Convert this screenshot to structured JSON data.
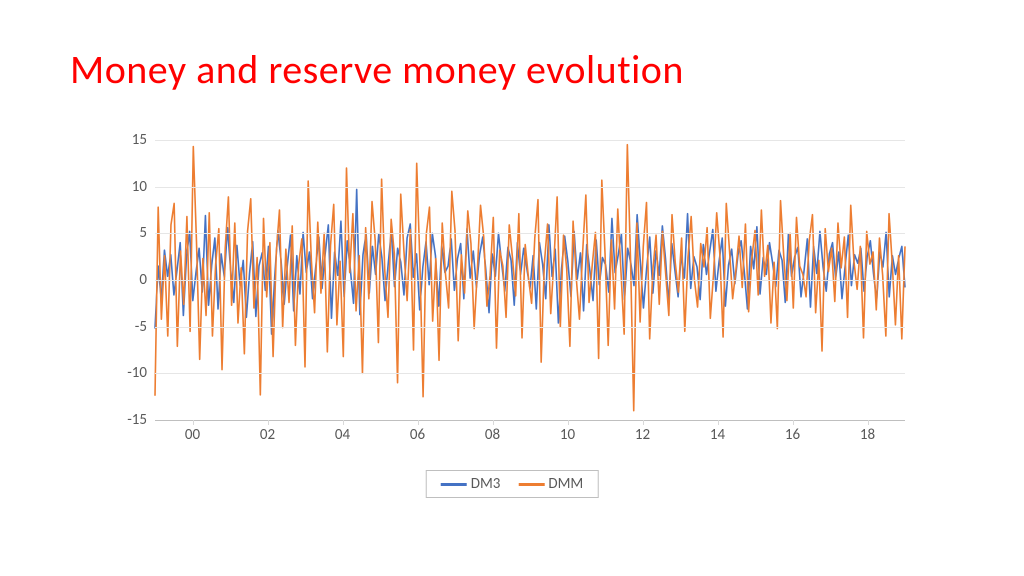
{
  "title": {
    "text": "Money and reserve money evolution",
    "color": "#ff0000",
    "fontsize": 40
  },
  "chart": {
    "type": "line",
    "background_color": "#ffffff",
    "grid_color": "#e6e6e6",
    "axis_color": "#bfbfbf",
    "tick_label_color": "#595959",
    "tick_fontsize": 15,
    "ylim": [
      -15,
      15
    ],
    "yticks": [
      -15,
      -10,
      -5,
      0,
      5,
      10,
      15
    ],
    "xlim": [
      0,
      240
    ],
    "xticks": [
      {
        "pos": 12,
        "label": "00"
      },
      {
        "pos": 36,
        "label": "02"
      },
      {
        "pos": 60,
        "label": "04"
      },
      {
        "pos": 84,
        "label": "06"
      },
      {
        "pos": 108,
        "label": "08"
      },
      {
        "pos": 132,
        "label": "10"
      },
      {
        "pos": 156,
        "label": "12"
      },
      {
        "pos": 180,
        "label": "14"
      },
      {
        "pos": 204,
        "label": "16"
      },
      {
        "pos": 228,
        "label": "18"
      }
    ],
    "line_width": 1.6,
    "series": [
      {
        "name": "DM3",
        "color": "#4472c4",
        "values": [
          -5.2,
          1.5,
          -2.1,
          3.2,
          0.4,
          2.7,
          -1.6,
          1.1,
          4.0,
          -3.8,
          2.5,
          5.2,
          -2.2,
          0.8,
          3.4,
          -1.3,
          6.9,
          -2.7,
          1.6,
          4.5,
          -3.1,
          2.8,
          0.3,
          5.6,
          1.1,
          -2.4,
          3.7,
          -0.6,
          2.1,
          -4.0,
          0.7,
          4.1,
          -3.9,
          1.5,
          2.9,
          -1.1,
          3.6,
          -5.8,
          0.4,
          5.3,
          2.1,
          -2.6,
          1.6,
          4.8,
          -3.3,
          2.6,
          -1.5,
          5.1,
          0.8,
          3.0,
          -2.0,
          1.4,
          4.6,
          -0.9,
          2.8,
          5.9,
          -4.1,
          3.0,
          0.5,
          6.3,
          -1.8,
          4.2,
          1.1,
          -2.5,
          9.7,
          -3.7,
          2.7,
          5.0,
          -1.4,
          3.6,
          0.6,
          4.9,
          2.4,
          -2.2,
          1.7,
          5.3,
          -0.7,
          3.4,
          1.9,
          -1.6,
          4.5,
          6.0,
          0.3,
          2.8,
          -3.2,
          1.4,
          4.1,
          -0.5,
          5.0,
          2.6,
          -2.8,
          3.7,
          0.8,
          1.5,
          4.4,
          -1.1,
          2.3,
          3.9,
          -2.0,
          5.5,
          0.2,
          3.1,
          -0.8,
          2.7,
          4.6,
          1.0,
          -3.5,
          2.8,
          0.4,
          5.0,
          1.8,
          -1.2,
          3.5,
          2.1,
          -2.7,
          4.0,
          0.6,
          3.4,
          1.2,
          -0.9,
          2.6,
          -3.1,
          4.0,
          1.7,
          -2.0,
          5.9,
          0.4,
          3.3,
          -4.6,
          1.2,
          4.7,
          2.0,
          -1.8,
          5.2,
          0.1,
          2.9,
          -3.3,
          3.8,
          1.0,
          -2.2,
          4.3,
          -0.5,
          2.4,
          1.6,
          -1.3,
          6.6,
          0.8,
          2.7,
          4.9,
          -2.1,
          3.4,
          1.8,
          -0.6,
          7.0,
          2.0,
          -3.0,
          1.2,
          4.6,
          -1.4,
          3.1,
          0.5,
          5.8,
          2.3,
          -2.6,
          3.9,
          1.0,
          -1.8,
          2.7,
          0.2,
          7.1,
          -0.9,
          2.5,
          1.4,
          -2.1,
          3.8,
          0.6,
          3.0,
          5.4,
          -1.2,
          2.0,
          4.5,
          -2.8,
          1.6,
          3.3,
          -0.4,
          2.7,
          4.2,
          0.9,
          -3.1,
          3.6,
          1.2,
          5.7,
          -1.5,
          2.4,
          0.6,
          4.0,
          1.8,
          -0.7,
          3.2,
          2.1,
          -2.4,
          4.9,
          0.4,
          2.5,
          3.5,
          -1.8,
          1.1,
          4.4,
          -2.9,
          3.6,
          0.7,
          5.2,
          1.4,
          -1.2,
          2.8,
          4.0,
          0.2,
          3.0,
          -2.0,
          1.5,
          4.8,
          -0.6,
          2.7,
          1.8,
          3.4,
          -1.2,
          2.5,
          4.2,
          0.7,
          -2.2,
          3.0,
          1.4,
          5.1,
          -1.8,
          2.6,
          0.6,
          2.3,
          3.6,
          -0.8
        ]
      },
      {
        "name": "DMM",
        "color": "#ed7d31",
        "values": [
          -12.4,
          7.8,
          -4.2,
          2.6,
          -6.0,
          5.9,
          8.2,
          -7.1,
          3.1,
          -2.6,
          6.8,
          -5.5,
          14.3,
          4.1,
          -8.5,
          2.3,
          -3.8,
          7.2,
          -6.0,
          1.7,
          5.5,
          -9.6,
          3.4,
          8.9,
          -2.7,
          6.1,
          -4.6,
          1.3,
          -7.9,
          5.2,
          8.7,
          -3.0,
          2.4,
          -12.3,
          6.6,
          -1.8,
          4.0,
          -8.2,
          2.9,
          7.5,
          -5.1,
          3.3,
          -2.4,
          5.8,
          -7.0,
          1.6,
          4.4,
          -9.3,
          10.6,
          2.1,
          -3.5,
          6.2,
          -1.4,
          5.0,
          -7.7,
          3.7,
          8.1,
          -4.8,
          2.0,
          -8.2,
          12.0,
          0.8,
          7.1,
          -3.3,
          2.6,
          -10.0,
          5.6,
          -2.0,
          8.4,
          4.2,
          -6.7,
          10.8,
          1.0,
          -4.0,
          6.5,
          2.8,
          -11.0,
          9.2,
          3.1,
          -2.2,
          5.4,
          -7.5,
          12.5,
          1.9,
          -12.5,
          4.9,
          7.8,
          -4.4,
          2.3,
          -8.6,
          6.1,
          0.7,
          -3.0,
          9.5,
          5.3,
          -6.5,
          2.7,
          -1.4,
          7.4,
          3.9,
          -5.2,
          1.0,
          8.0,
          4.6,
          -2.8,
          0.5,
          6.7,
          -7.3,
          3.2,
          1.5,
          -4.0,
          5.9,
          2.4,
          -1.7,
          7.1,
          -6.2,
          3.8,
          0.3,
          -2.5,
          4.5,
          8.6,
          -8.8,
          1.8,
          6.0,
          -3.6,
          2.1,
          8.9,
          -5.0,
          4.8,
          1.2,
          -7.1,
          6.3,
          0.2,
          -4.2,
          3.0,
          9.1,
          -2.4,
          1.6,
          5.1,
          -8.4,
          10.7,
          2.9,
          -7.0,
          4.3,
          -3.1,
          7.6,
          0.9,
          -5.8,
          14.5,
          2.2,
          -14.0,
          6.1,
          -4.5,
          3.6,
          8.3,
          -6.3,
          1.1,
          4.8,
          -2.6,
          5.2,
          0.7,
          -3.8,
          7.0,
          1.9,
          -1.3,
          4.5,
          -5.5,
          2.4,
          6.8,
          0.1,
          -2.9,
          3.9,
          1.4,
          5.6,
          -4.1,
          0.6,
          7.2,
          2.7,
          -6.1,
          8.2,
          3.2,
          -2.0,
          1.0,
          4.7,
          -0.8,
          6.0,
          -3.4,
          2.3,
          5.3,
          -1.6,
          7.5,
          0.4,
          3.7,
          -4.6,
          1.9,
          -5.2,
          8.5,
          2.6,
          -2.2,
          5.0,
          -3.0,
          6.7,
          1.5,
          0.6,
          -1.8,
          4.2,
          7.0,
          -3.5,
          2.1,
          -7.6,
          5.5,
          0.9,
          3.4,
          -2.3,
          6.1,
          1.3,
          4.6,
          -4.0,
          8.0,
          2.0,
          -1.0,
          3.6,
          -6.2,
          5.2,
          1.7,
          3.0,
          -3.2,
          4.5,
          0.5,
          -6.0,
          7.1,
          1.8,
          -4.8,
          2.6,
          -6.3,
          3.6
        ]
      }
    ],
    "legend": {
      "border_color": "#bfbfbf",
      "items": [
        {
          "label": "DM3",
          "color": "#4472c4"
        },
        {
          "label": "DMM",
          "color": "#ed7d31"
        }
      ]
    }
  }
}
